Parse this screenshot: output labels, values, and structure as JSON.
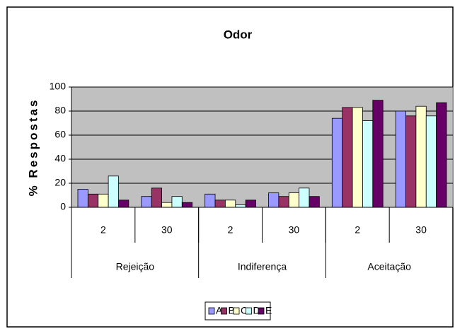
{
  "chart_data": {
    "type": "bar",
    "title": "Odor",
    "y_label": "% Respostas",
    "categories": [
      "2",
      "30",
      "2",
      "30",
      "2",
      "30"
    ],
    "category_groups": [
      "Rejeição",
      "Indiferença",
      "Aceitação"
    ],
    "series": [
      {
        "name": "A",
        "color": "#9999ff",
        "values": [
          15,
          9,
          11,
          12,
          74,
          80
        ]
      },
      {
        "name": "B",
        "color": "#993366",
        "values": [
          11,
          16,
          6,
          9,
          83,
          76
        ]
      },
      {
        "name": "C",
        "color": "#ffffcc",
        "values": [
          11,
          4,
          6,
          12,
          83,
          84
        ]
      },
      {
        "name": "D",
        "color": "#ccffff",
        "values": [
          26,
          9,
          2,
          16,
          72,
          76
        ]
      },
      {
        "name": "E",
        "color": "#660066",
        "values": [
          6,
          4,
          6,
          9,
          89,
          87
        ]
      }
    ],
    "ylim": [
      0,
      100
    ],
    "yticks": [
      0,
      20,
      40,
      60,
      80,
      100
    ],
    "grid": true,
    "legend": "bottom"
  }
}
